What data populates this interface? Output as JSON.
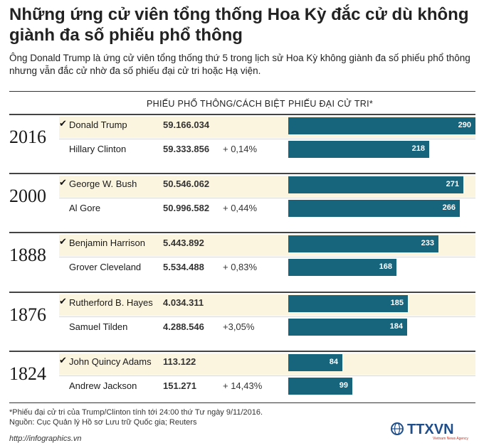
{
  "title": "Những ứng cử viên tổng thống Hoa Kỳ đắc cử dù không giành đa số phiếu phổ thông",
  "subtitle": "Ông Donald Trump là ứng cử viên tổng thống thứ 5 trong lịch sử Hoa Kỳ không giành đa số phiếu phổ thông nhưng vẫn đắc cử nhờ đa số phiếu đại cử tri hoặc Hạ viện.",
  "headers": {
    "popular": "PHIẾU PHỔ THÔNG/CÁCH BIỆT",
    "electoral": "PHIẾU ĐẠI CỬ TRI*"
  },
  "colors": {
    "bar": "#17647d",
    "highlight": "#fbf4df"
  },
  "chart_data": {
    "type": "bar",
    "title": "Những ứng cử viên tổng thống Hoa Kỳ đắc cử dù không giành đa số phiếu phổ thông",
    "xlabel": "",
    "ylabel": "PHIẾU ĐẠI CỬ TRI*",
    "xlim": [
      0,
      290
    ],
    "groups": [
      {
        "year": "2016",
        "winner": "Donald Trump",
        "winner_popular": "59.166.034",
        "winner_electoral": 290,
        "loser": "Hillary Clinton",
        "loser_popular": "59.333.856",
        "margin": "+ 0,14%",
        "loser_electoral": 218
      },
      {
        "year": "2000",
        "winner": "George W. Bush",
        "winner_popular": "50.546.062",
        "winner_electoral": 271,
        "loser": "Al Gore",
        "loser_popular": "50.996.582",
        "margin": "+ 0,44%",
        "loser_electoral": 266
      },
      {
        "year": "1888",
        "winner": "Benjamin Harrison",
        "winner_popular": "5.443.892",
        "winner_electoral": 233,
        "loser": "Grover Cleveland",
        "loser_popular": "5.534.488",
        "margin": "+ 0,83%",
        "loser_electoral": 168
      },
      {
        "year": "1876",
        "winner": "Rutherford B. Hayes",
        "winner_popular": "4.034.311",
        "winner_electoral": 185,
        "loser": "Samuel Tilden",
        "loser_popular": "4.288.546",
        "margin": "+3,05%",
        "loser_electoral": 184
      },
      {
        "year": "1824",
        "winner": "John Quincy Adams",
        "winner_popular": "113.122",
        "winner_electoral": 84,
        "loser": "Andrew Jackson",
        "loser_popular": "151.271",
        "margin": "+ 14,43%",
        "loser_electoral": 99
      }
    ]
  },
  "footnote": "*Phiếu đại cử tri của Trump/Clinton tính tới 24:00 thứ Tư ngày 9/11/2016.",
  "source": "Nguồn: Cục Quản lý Hồ sơ Lưu trữ Quốc gia; Reuters",
  "website": "http://infographics.vn",
  "logo_text": "TTXVN",
  "logo_sub": "Vietnam News Agency"
}
